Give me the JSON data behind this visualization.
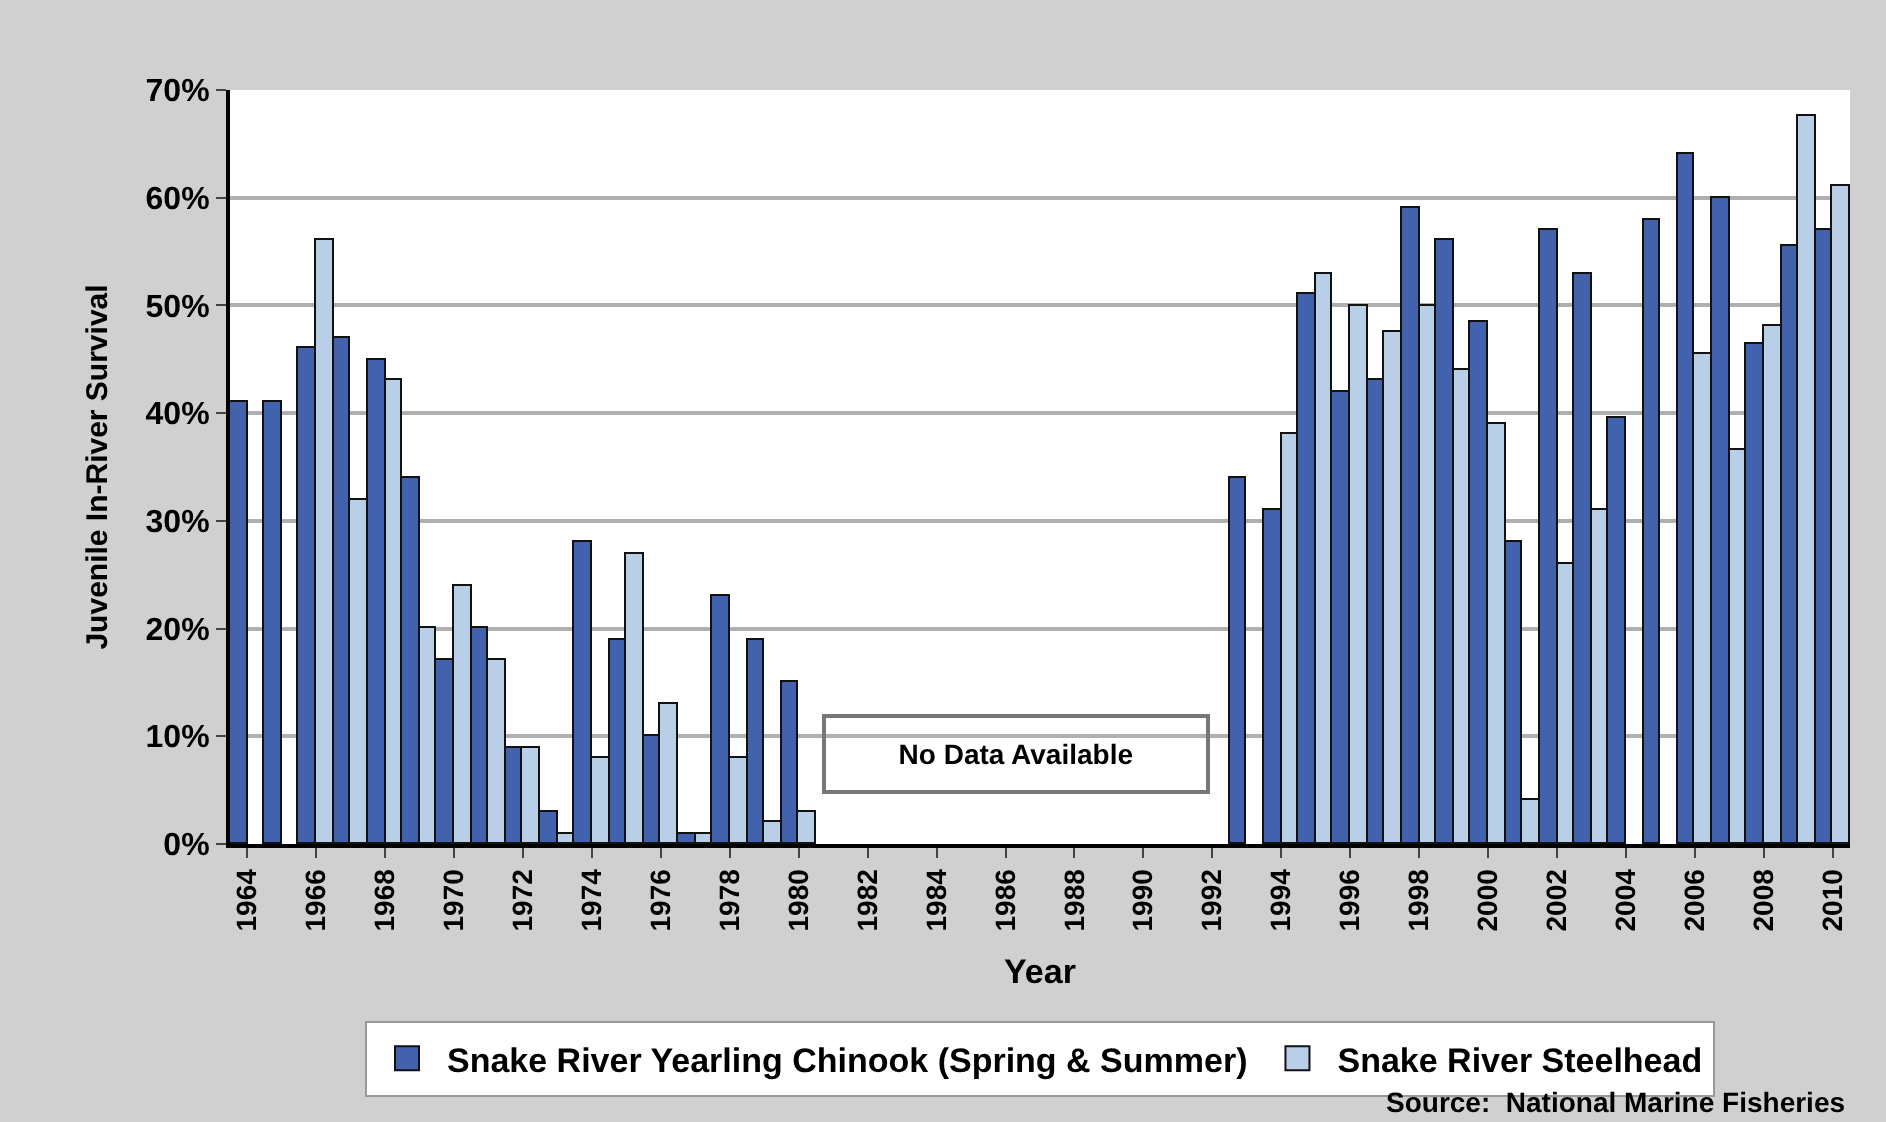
{
  "chart_data": {
    "type": "bar",
    "xlabel": "Year",
    "ylabel": "Juvenile In-River Survival",
    "x": [
      1964,
      1965,
      1966,
      1967,
      1968,
      1969,
      1970,
      1971,
      1972,
      1973,
      1974,
      1975,
      1976,
      1977,
      1978,
      1979,
      1980,
      1981,
      1982,
      1983,
      1984,
      1985,
      1986,
      1987,
      1988,
      1989,
      1990,
      1991,
      1992,
      1993,
      1994,
      1995,
      1996,
      1997,
      1998,
      1999,
      2000,
      2001,
      2002,
      2003,
      2004,
      2005,
      2006,
      2007,
      2008,
      2009,
      2010
    ],
    "series": [
      {
        "name": "Snake River Yearling Chinook (Spring & Summer)",
        "color": "#4262ae",
        "values": [
          41,
          41,
          46,
          47,
          45,
          34,
          17,
          20,
          9,
          3,
          28,
          19,
          10,
          1,
          23,
          19,
          15,
          null,
          null,
          null,
          null,
          null,
          null,
          null,
          null,
          null,
          null,
          null,
          null,
          34,
          31,
          51,
          42,
          43,
          59,
          56,
          48.5,
          28,
          57,
          53,
          39.5,
          58,
          64,
          60,
          46.5,
          55.5,
          57
        ]
      },
      {
        "name": "Snake River Steelhead",
        "color": "#b9cfe8",
        "values": [
          null,
          null,
          56,
          32,
          43,
          20,
          24,
          17,
          9,
          1,
          8,
          27,
          13,
          1,
          8,
          2,
          3,
          null,
          null,
          null,
          null,
          null,
          null,
          null,
          null,
          null,
          null,
          null,
          null,
          null,
          38,
          53,
          50,
          47.5,
          50,
          44,
          39,
          4,
          26,
          31,
          null,
          null,
          45.5,
          36.5,
          48,
          67.5,
          61
        ]
      }
    ],
    "xlim": [
      1963.5,
      2010.5
    ],
    "xticks": [
      1964,
      1966,
      1968,
      1970,
      1972,
      1974,
      1976,
      1978,
      1980,
      1982,
      1984,
      1986,
      1988,
      1990,
      1992,
      1994,
      1996,
      1998,
      2000,
      2002,
      2004,
      2006,
      2008,
      2010
    ],
    "ylim": [
      0,
      70
    ],
    "yticks": [
      {
        "value": 0,
        "label": "0%"
      },
      {
        "value": 10,
        "label": "10%"
      },
      {
        "value": 20,
        "label": "20%"
      },
      {
        "value": 30,
        "label": "30%"
      },
      {
        "value": 40,
        "label": "40%"
      },
      {
        "value": 50,
        "label": "50%"
      },
      {
        "value": 60,
        "label": "60%"
      },
      {
        "value": 70,
        "label": "70%"
      }
    ],
    "grid": "y",
    "legend": "bottom",
    "annotations": [
      "No Data Available",
      "Source:  National Marine Fisheries"
    ]
  }
}
